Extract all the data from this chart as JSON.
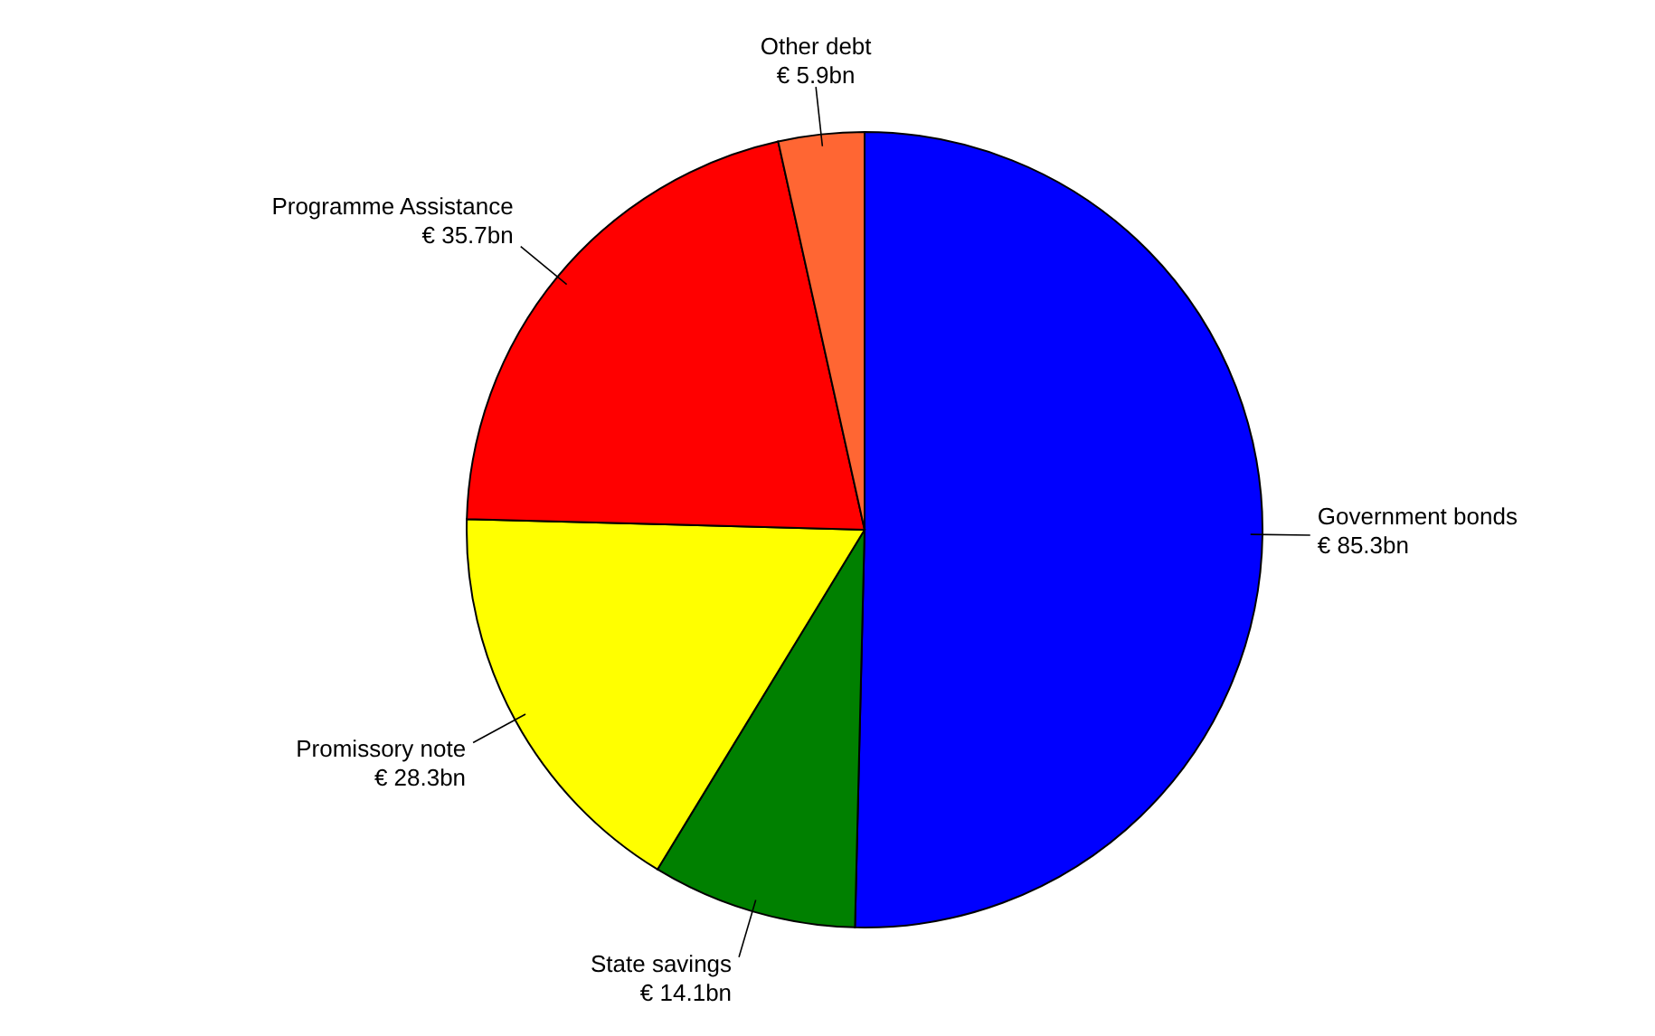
{
  "chart_data": {
    "type": "pie",
    "categories": [
      "Government bonds",
      "State savings",
      "Promissory note",
      "Programme Assistance",
      "Other debt"
    ],
    "values": [
      85.3,
      14.1,
      28.3,
      35.7,
      5.9
    ],
    "value_labels": [
      "€ 85.3bn",
      "€ 14.1bn",
      "€ 28.3bn",
      "€ 35.7bn",
      "€ 5.9bn"
    ],
    "colors": [
      "#0000ff",
      "#008000",
      "#ffff00",
      "#ff0000",
      "#ff6633"
    ],
    "legend": false
  }
}
